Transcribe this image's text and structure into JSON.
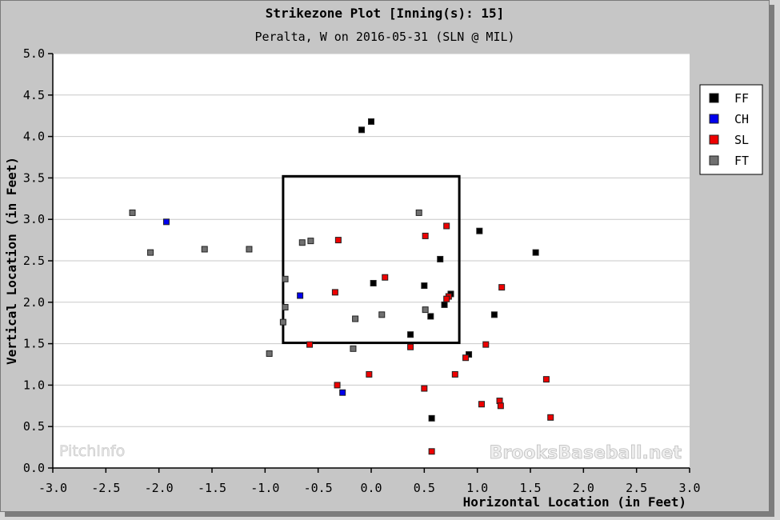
{
  "chart_data": {
    "type": "scatter",
    "title": "Strikezone Plot [Inning(s): 15]",
    "subtitle": "Peralta, W on 2016-05-31 (SLN @ MIL)",
    "xlabel": "Horizontal Location (in Feet)",
    "ylabel": "Vertical Location (in Feet)",
    "xlim": [
      -3.0,
      3.0
    ],
    "ylim": [
      0.0,
      5.0
    ],
    "xticks": [
      "-3.0",
      "-2.5",
      "-2.0",
      "-1.5",
      "-1.0",
      "-0.5",
      "0.0",
      "0.5",
      "1.0",
      "1.5",
      "2.0",
      "2.5",
      "3.0"
    ],
    "yticks": [
      "0.0",
      "0.5",
      "1.0",
      "1.5",
      "2.0",
      "2.5",
      "3.0",
      "3.5",
      "4.0",
      "4.5",
      "5.0"
    ],
    "grid": "horizontal",
    "legend_position": "right",
    "strike_zone": {
      "x": [
        -0.83,
        0.83
      ],
      "y": [
        1.51,
        3.52
      ]
    },
    "watermarks": [
      "PitchInfo",
      "BrooksBaseball.net"
    ],
    "series": [
      {
        "name": "FF",
        "color": "#000000",
        "points": [
          [
            -0.09,
            4.08
          ],
          [
            0.0,
            4.18
          ],
          [
            1.02,
            2.86
          ],
          [
            1.55,
            2.6
          ],
          [
            0.65,
            2.52
          ],
          [
            0.02,
            2.23
          ],
          [
            0.5,
            2.2
          ],
          [
            0.75,
            2.1
          ],
          [
            0.69,
            1.97
          ],
          [
            0.56,
            1.83
          ],
          [
            1.16,
            1.85
          ],
          [
            0.37,
            1.61
          ],
          [
            0.92,
            1.37
          ],
          [
            0.57,
            0.6
          ]
        ]
      },
      {
        "name": "CH",
        "color": "#0000ee",
        "points": [
          [
            -1.93,
            2.97
          ],
          [
            -0.67,
            2.08
          ],
          [
            -0.27,
            0.91
          ]
        ]
      },
      {
        "name": "SL",
        "color": "#ee0000",
        "points": [
          [
            0.71,
            2.92
          ],
          [
            0.51,
            2.8
          ],
          [
            -0.31,
            2.75
          ],
          [
            0.13,
            2.3
          ],
          [
            1.23,
            2.18
          ],
          [
            -0.34,
            2.12
          ],
          [
            0.73,
            2.07
          ],
          [
            0.71,
            2.04
          ],
          [
            -0.58,
            1.49
          ],
          [
            0.37,
            1.46
          ],
          [
            1.08,
            1.49
          ],
          [
            0.89,
            1.33
          ],
          [
            0.79,
            1.13
          ],
          [
            -0.02,
            1.13
          ],
          [
            -0.32,
            1.0
          ],
          [
            0.5,
            0.96
          ],
          [
            1.65,
            1.07
          ],
          [
            1.21,
            0.81
          ],
          [
            1.22,
            0.75
          ],
          [
            1.04,
            0.77
          ],
          [
            1.69,
            0.61
          ],
          [
            0.57,
            0.2
          ]
        ]
      },
      {
        "name": "FT",
        "color": "#707070",
        "points": [
          [
            -2.25,
            3.08
          ],
          [
            -2.08,
            2.6
          ],
          [
            -1.57,
            2.64
          ],
          [
            -1.15,
            2.64
          ],
          [
            -0.65,
            2.72
          ],
          [
            -0.57,
            2.74
          ],
          [
            0.45,
            3.08
          ],
          [
            -0.81,
            2.28
          ],
          [
            -0.81,
            1.94
          ],
          [
            -0.83,
            1.76
          ],
          [
            -0.96,
            1.38
          ],
          [
            -0.15,
            1.8
          ],
          [
            -0.17,
            1.44
          ],
          [
            0.1,
            1.85
          ],
          [
            0.51,
            1.91
          ]
        ]
      }
    ]
  }
}
